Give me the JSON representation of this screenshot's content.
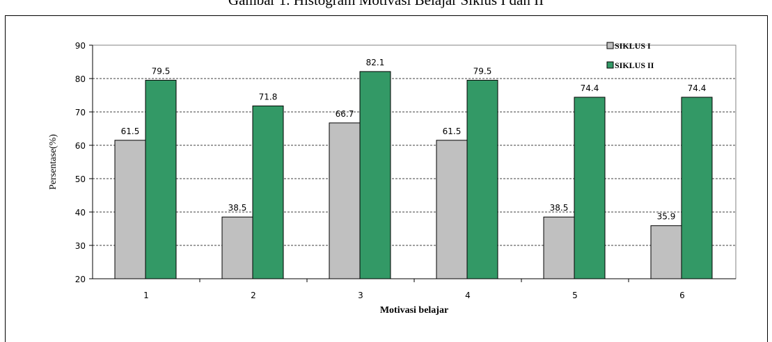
{
  "chart_data": {
    "type": "bar",
    "title": "Gambar 1. Histogram Motivasi  Belajar Siklus I dan II",
    "xlabel": "Motivasi belajar",
    "ylabel": "Persentase(%)",
    "categories": [
      "1",
      "2",
      "3",
      "4",
      "5",
      "6"
    ],
    "ylim": [
      20,
      90
    ],
    "yticks": [
      "20",
      "30",
      "40",
      "50",
      "60",
      "70",
      "80",
      "90"
    ],
    "grid": true,
    "legend_position": "top-right",
    "series": [
      {
        "name": "SIKLUS I",
        "color": "#c0c0c0",
        "values": [
          61.5,
          38.5,
          66.7,
          61.5,
          38.5,
          35.9
        ],
        "labels": [
          "61.5",
          "38.5",
          "66.7",
          "61.5",
          "38.5",
          "35.9"
        ]
      },
      {
        "name": "SIKLUS II",
        "color": "#339966",
        "values": [
          79.5,
          71.8,
          82.1,
          79.5,
          74.4,
          74.4
        ],
        "labels": [
          "79.5",
          "71.8",
          "82.1",
          "79.5",
          "74.4",
          "74.4"
        ]
      }
    ]
  }
}
